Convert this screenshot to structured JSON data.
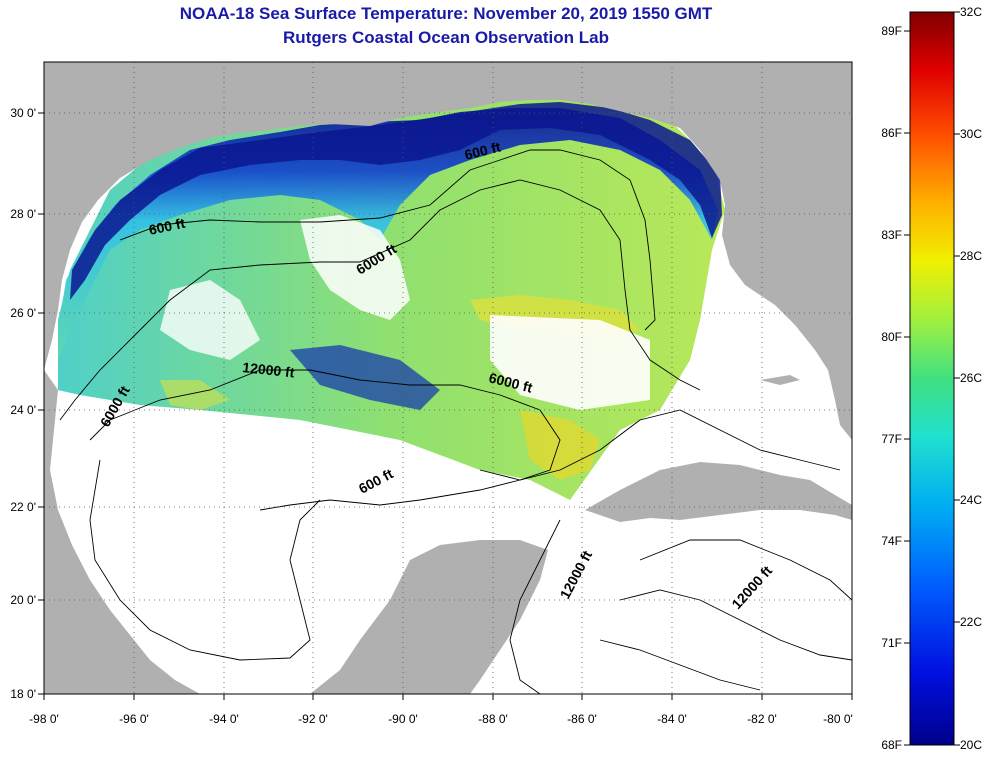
{
  "title": "NOAA-18 Sea Surface Temperature:  November 20, 2019 1550 GMT",
  "subtitle": "Rutgers Coastal Ocean Observation Lab",
  "map": {
    "lon_ticks": [
      "-98 0'",
      "-96 0'",
      "-94 0'",
      "-92 0'",
      "-90 0'",
      "-88 0'",
      "-86 0'",
      "-84 0'",
      "-82 0'",
      "-80 0'"
    ],
    "lat_ticks": [
      "30 0'",
      "28 0'",
      "26 0'",
      "24 0'",
      "22 0'",
      "20 0'",
      "18 0'"
    ],
    "contour_labels": [
      {
        "text": "600 ft",
        "id": "contour-600-north"
      },
      {
        "text": "600 ft",
        "id": "contour-600-west"
      },
      {
        "text": "6000 ft",
        "id": "contour-6000-north"
      },
      {
        "text": "12000 ft",
        "id": "contour-12000-west"
      },
      {
        "text": "6000 ft",
        "id": "contour-6000-east"
      },
      {
        "text": "6000 ft",
        "id": "contour-6000-southwest"
      },
      {
        "text": "600 ft",
        "id": "contour-600-south"
      },
      {
        "text": "12000 ft",
        "id": "contour-12000-caribbean"
      },
      {
        "text": "12000 ft",
        "id": "contour-12000-east"
      }
    ],
    "colors": {
      "land": "#b0b0b0",
      "no_data": "#ffffff",
      "cold_coastal": "#0a1a9a",
      "mid": "#28c8e0",
      "warm": "#a8e060",
      "warmest": "#f0d020"
    }
  },
  "colorbar": {
    "fahrenheit_labels": [
      "89F",
      "86F",
      "83F",
      "80F",
      "77F",
      "74F",
      "71F",
      "68F"
    ],
    "celsius_labels": [
      "32C",
      "30C",
      "28C",
      "26C",
      "24C",
      "22C",
      "20C"
    ],
    "range_c": [
      20,
      32
    ],
    "range_f": [
      68,
      89.6
    ]
  }
}
